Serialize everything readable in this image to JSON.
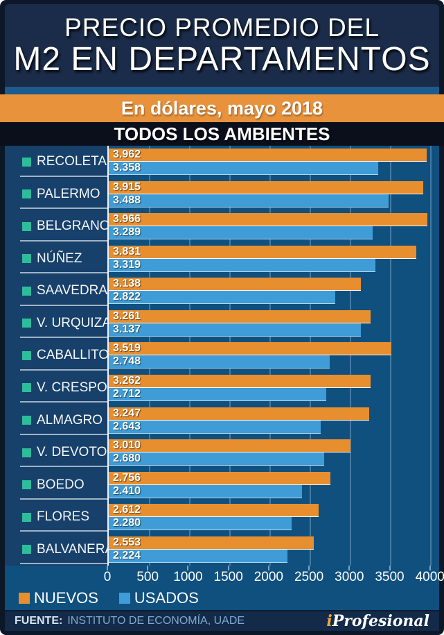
{
  "header": {
    "title_line1": "PRECIO PROMEDIO DEL",
    "title_line2": "M2 EN DEPARTAMENTOS"
  },
  "subtitle_band": {
    "text": "En dólares, mayo 2018"
  },
  "section_band": {
    "text": "TODOS LOS AMBIENTES"
  },
  "chart_data": {
    "type": "bar",
    "orientation": "horizontal",
    "title": "PRECIO PROMEDIO DEL M2 EN DEPARTAMENTOS",
    "subtitle": "En dólares, mayo 2018",
    "section": "TODOS LOS AMBIENTES",
    "categories": [
      "RECOLETA",
      "PALERMO",
      "BELGRANO",
      "NÚÑEZ",
      "SAAVEDRA",
      "V. URQUIZA",
      "CABALLITO",
      "V. CRESPO",
      "ALMAGRO",
      "V. DEVOTO",
      "BOEDO",
      "FLORES",
      "BALVANERA"
    ],
    "series": [
      {
        "name": "NUEVOS",
        "color": "#e78e2f",
        "values": [
          3962,
          3915,
          3966,
          3831,
          3138,
          3261,
          3519,
          3262,
          3247,
          3010,
          2756,
          2612,
          2553
        ],
        "labels": [
          "3.962",
          "3.915",
          "3.966",
          "3.831",
          "3.138",
          "3.261",
          "3.519",
          "3.262",
          "3.247",
          "3.010",
          "2.756",
          "2.612",
          "2.553"
        ]
      },
      {
        "name": "USADOS",
        "color": "#3f9cd6",
        "values": [
          3358,
          3488,
          3289,
          3319,
          2822,
          3137,
          2748,
          2712,
          2643,
          2680,
          2410,
          2280,
          2224
        ],
        "labels": [
          "3.358",
          "3.488",
          "3.289",
          "3.319",
          "2.822",
          "3.137",
          "2.748",
          "2.712",
          "2.643",
          "2.680",
          "2.410",
          "2.280",
          "2.224"
        ]
      }
    ],
    "x_ticks": [
      "0",
      "500",
      "1000",
      "1500",
      "2000",
      "2500",
      "3000",
      "3500",
      "4000"
    ],
    "x_tick_values": [
      0,
      500,
      1000,
      1500,
      2000,
      2500,
      3000,
      3500,
      4000
    ],
    "xlim": [
      0,
      4114
    ],
    "grid": true,
    "legend_position": "bottom-left",
    "category_marker_color": "#2ebd9c"
  },
  "legend": {
    "items": [
      {
        "label": "NUEVOS",
        "color": "#e78e2f"
      },
      {
        "label": "USADOS",
        "color": "#3f9cd6"
      }
    ]
  },
  "footer": {
    "source_label": "FUENTE:",
    "source_text": "INSTITUTO DE ECONOMÍA, UADE",
    "logo_i": "i",
    "logo_rest": "Profesional"
  },
  "colors": {
    "frame": "#0c1828",
    "header_bg": "#1a2c49",
    "blue_strip": "#1e5b8d",
    "orange_band": "#e8923c",
    "black_band": "#0a0f1b",
    "plot_bg": "#0f507f",
    "label_col_bg": "#17406a",
    "gridline": "#4579a4",
    "bar_nuevos": "#e78e2f",
    "bar_usados": "#3f9cd6",
    "marker_teal": "#2ebd9c",
    "footer_bg": "#132a48"
  }
}
